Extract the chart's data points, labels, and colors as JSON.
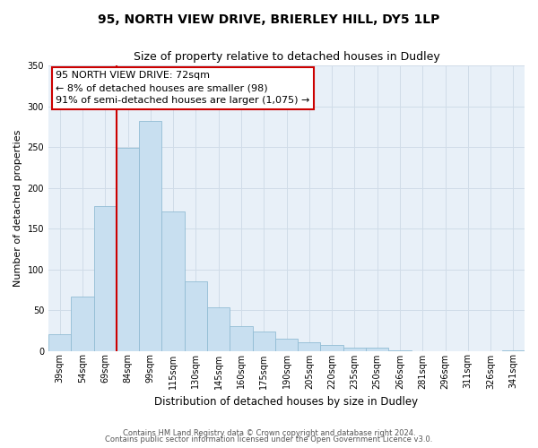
{
  "title": "95, NORTH VIEW DRIVE, BRIERLEY HILL, DY5 1LP",
  "subtitle": "Size of property relative to detached houses in Dudley",
  "xlabel": "Distribution of detached houses by size in Dudley",
  "ylabel": "Number of detached properties",
  "bar_color": "#c8dff0",
  "bar_edge_color": "#92bcd4",
  "background_color": "#ffffff",
  "ax_background_color": "#e8f0f8",
  "grid_color": "#d0dce8",
  "categories": [
    "39sqm",
    "54sqm",
    "69sqm",
    "84sqm",
    "99sqm",
    "115sqm",
    "130sqm",
    "145sqm",
    "160sqm",
    "175sqm",
    "190sqm",
    "205sqm",
    "220sqm",
    "235sqm",
    "250sqm",
    "266sqm",
    "281sqm",
    "296sqm",
    "311sqm",
    "326sqm",
    "341sqm"
  ],
  "values": [
    20,
    67,
    177,
    249,
    282,
    171,
    85,
    53,
    30,
    24,
    15,
    10,
    7,
    4,
    4,
    1,
    0,
    0,
    0,
    0,
    1
  ],
  "ylim": [
    0,
    350
  ],
  "yticks": [
    0,
    50,
    100,
    150,
    200,
    250,
    300,
    350
  ],
  "vline_index": 2,
  "vline_color": "#cc0000",
  "annotation_line1": "95 NORTH VIEW DRIVE: 72sqm",
  "annotation_line2": "← 8% of detached houses are smaller (98)",
  "annotation_line3": "91% of semi-detached houses are larger (1,075) →",
  "annotation_box_edgecolor": "#cc0000",
  "annotation_box_facecolor": "#ffffff",
  "footer_line1": "Contains HM Land Registry data © Crown copyright and database right 2024.",
  "footer_line2": "Contains public sector information licensed under the Open Government Licence v3.0.",
  "title_fontsize": 10,
  "subtitle_fontsize": 9,
  "ylabel_fontsize": 8,
  "xlabel_fontsize": 8.5,
  "tick_fontsize": 7,
  "annotation_fontsize": 8,
  "footer_fontsize": 6
}
